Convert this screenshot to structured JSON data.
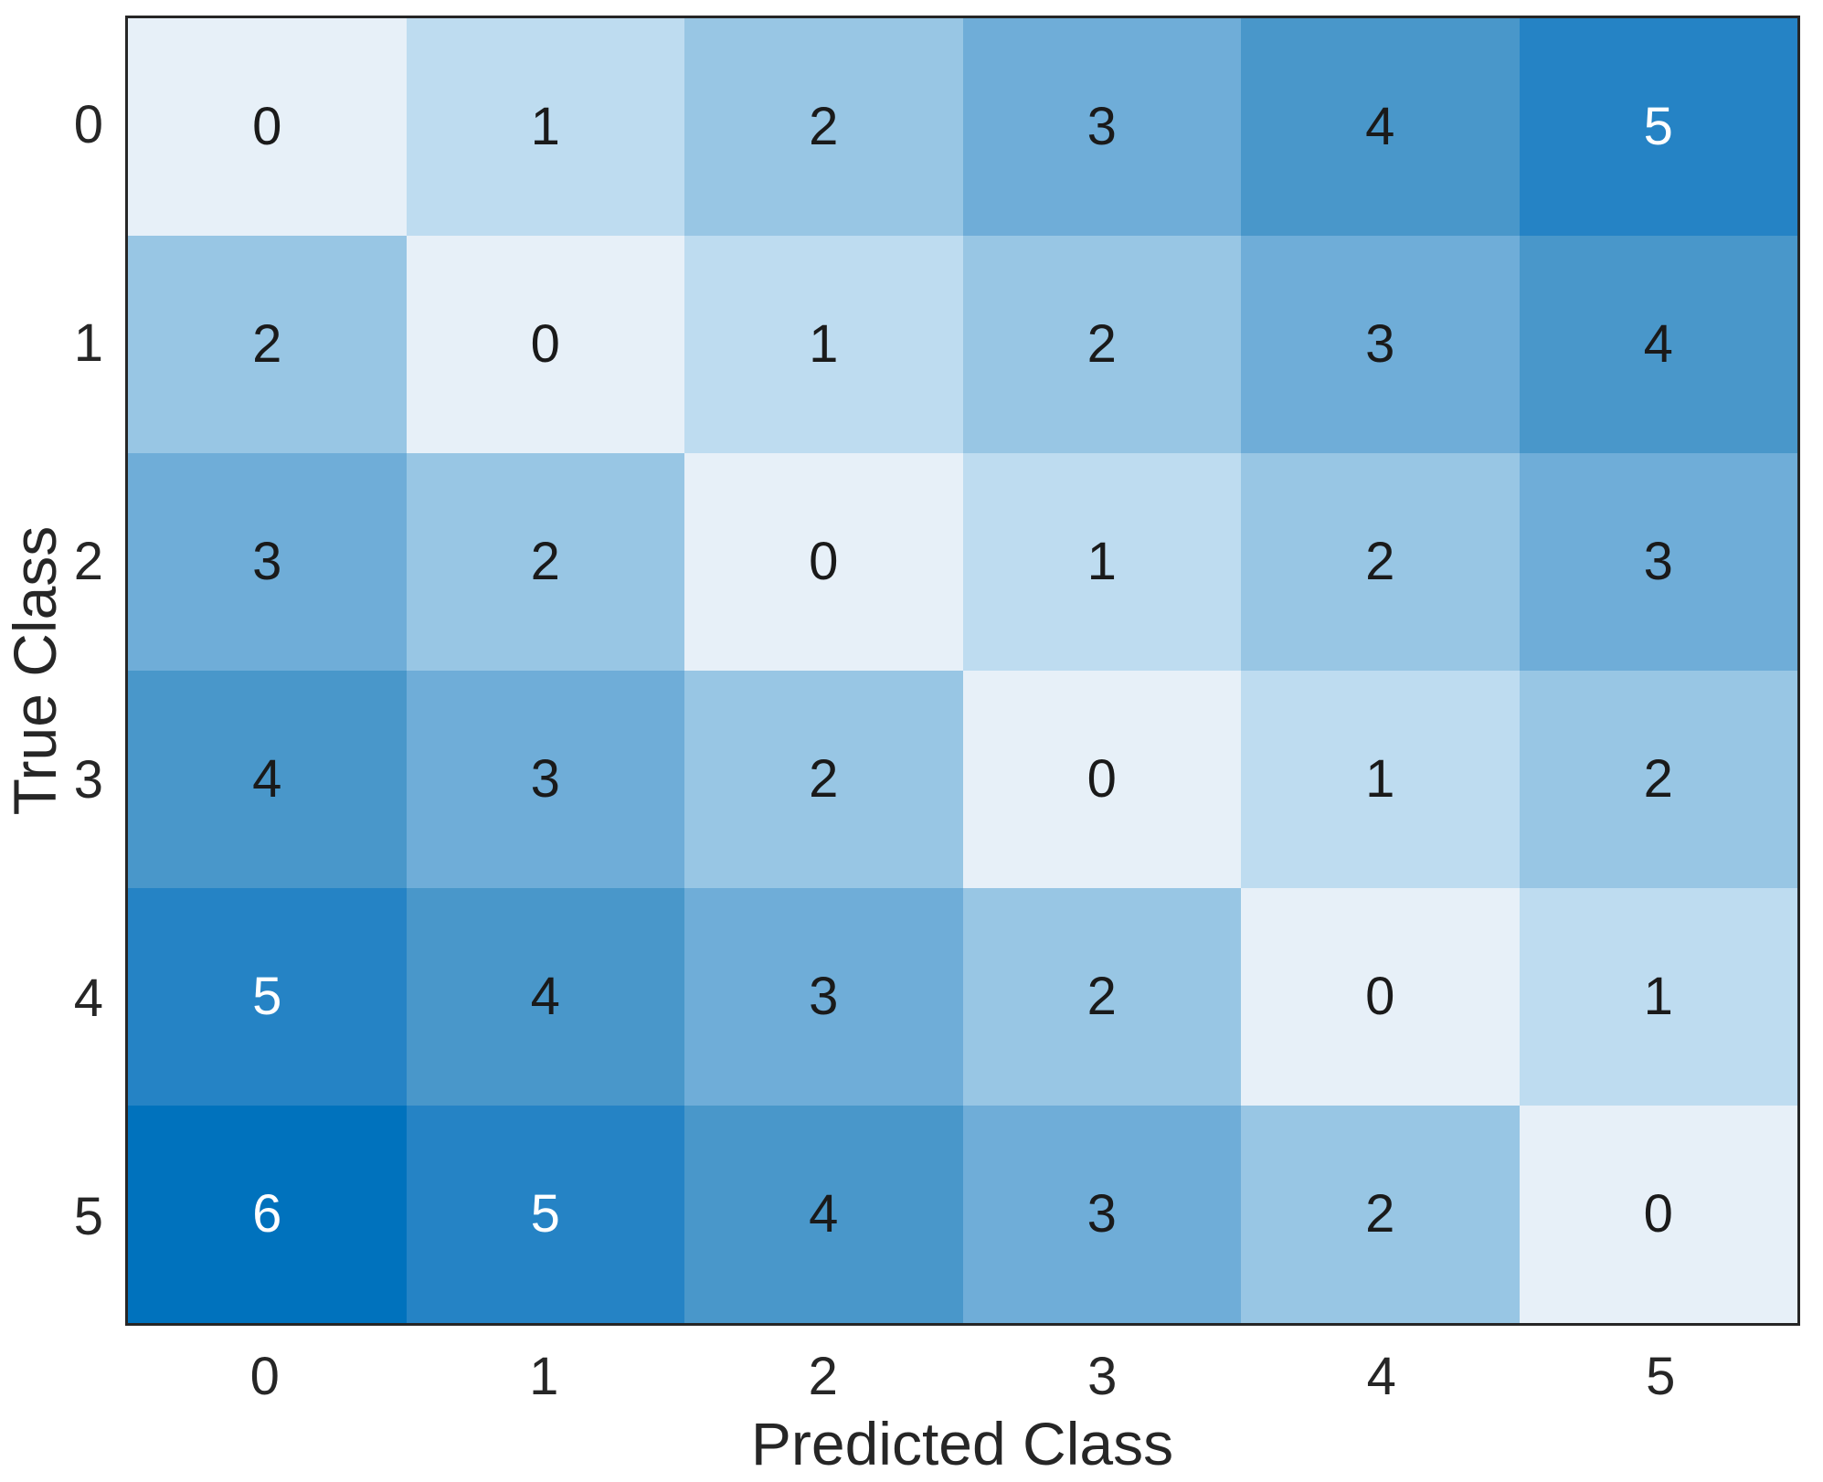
{
  "chart_data": {
    "type": "heatmap",
    "xlabel": "Predicted Class",
    "ylabel": "True Class",
    "x_tick_labels": [
      "0",
      "1",
      "2",
      "3",
      "4",
      "5"
    ],
    "y_tick_labels": [
      "0",
      "1",
      "2",
      "3",
      "4",
      "5"
    ],
    "matrix": [
      [
        0,
        1,
        2,
        3,
        4,
        5
      ],
      [
        2,
        0,
        1,
        2,
        3,
        4
      ],
      [
        3,
        2,
        0,
        1,
        2,
        3
      ],
      [
        4,
        3,
        2,
        0,
        1,
        2
      ],
      [
        5,
        4,
        3,
        2,
        0,
        1
      ],
      [
        6,
        5,
        4,
        3,
        2,
        0
      ]
    ],
    "value_range": [
      0,
      6
    ],
    "value_colors": {
      "0": "#e7f0f8",
      "1": "#bedcf0",
      "2": "#98c6e4",
      "3": "#6fadd8",
      "4": "#4997ca",
      "5": "#2583c5",
      "6": "#0072bd"
    },
    "dark_cell_text_threshold": 5,
    "cell_text_color": "#1a1a1a",
    "cell_text_color_on_dark": "#ffffff",
    "axis_text_color": "#262626",
    "frame_color": "#262626",
    "colormap_low": "#e7f0f8",
    "colormap_high": "#0072bd",
    "grid": false,
    "legend": "none"
  }
}
